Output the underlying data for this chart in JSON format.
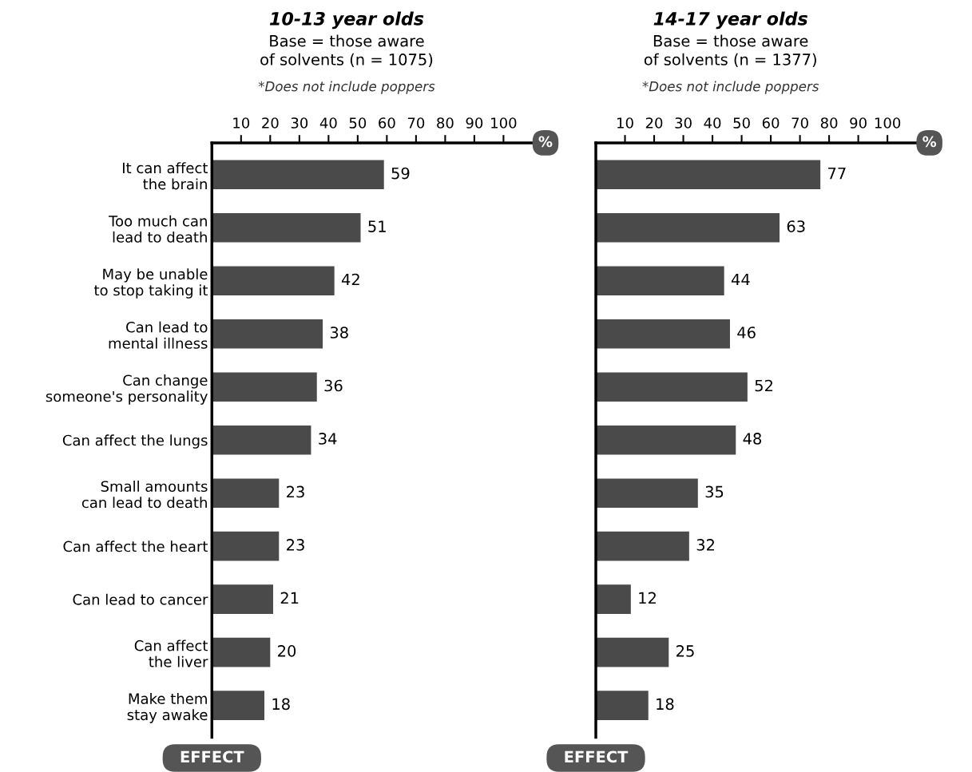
{
  "chart_data": [
    {
      "type": "bar",
      "orientation": "horizontal",
      "title": "10-13 year olds",
      "subtitle": "Base = those aware\nof solvents (n = 1075)",
      "annotations": [
        "*Does not include poppers"
      ],
      "xlabel": "%",
      "ylabel": "EFFECT",
      "categories": [
        "It can affect\nthe brain",
        "Too much can\nlead to death",
        "May be unable\nto stop taking it",
        "Can lead to\nmental illness",
        "Can change\nsomeone's personality",
        "Can affect the lungs",
        "Small amounts\ncan lead to death",
        "Can affect the heart",
        "Can lead to cancer",
        "Can affect\nthe liver",
        "Make them\nstay awake"
      ],
      "values": [
        59,
        51,
        42,
        38,
        36,
        34,
        23,
        23,
        21,
        20,
        18
      ],
      "color": "#4a4a4a",
      "data_labels": true,
      "grid": false,
      "xlim": [
        0,
        110
      ],
      "xticks": [
        10,
        20,
        30,
        40,
        50,
        60,
        70,
        80,
        90,
        100
      ]
    },
    {
      "type": "bar",
      "orientation": "horizontal",
      "title": "14-17 year olds",
      "subtitle": "Base = those aware\nof solvents (n = 1377)",
      "annotations": [
        "*Does not include poppers"
      ],
      "xlabel": "%",
      "ylabel": "EFFECT",
      "categories": [
        null,
        null,
        null,
        null,
        null,
        null,
        null,
        null,
        null,
        null,
        null
      ],
      "values": [
        77,
        63,
        44,
        46,
        52,
        48,
        35,
        32,
        12,
        25,
        18
      ],
      "color": "#4a4a4a",
      "data_labels": true,
      "grid": false,
      "xlim": [
        0,
        110
      ],
      "xticks": [
        10,
        20,
        30,
        40,
        50,
        60,
        70,
        80,
        90,
        100
      ]
    }
  ]
}
